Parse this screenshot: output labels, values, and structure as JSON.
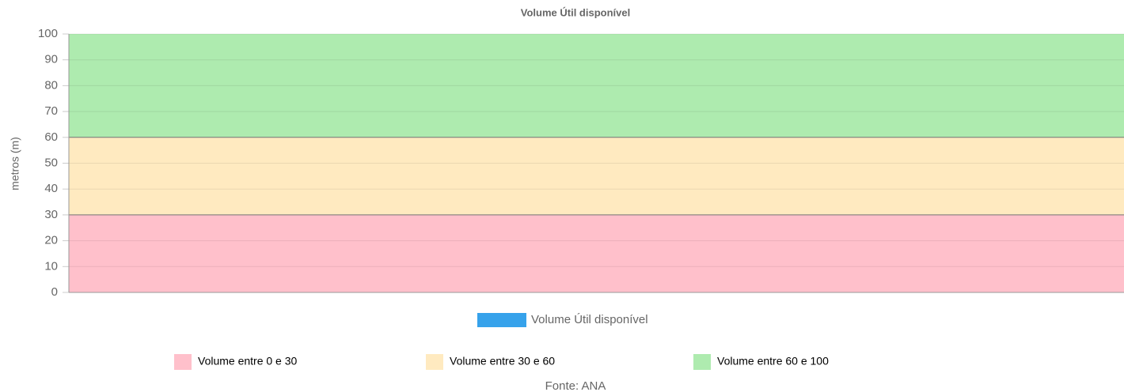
{
  "chart_data": {
    "type": "band",
    "title": "Volume Útil disponível",
    "ylabel": "metros (m)",
    "ylim": [
      0,
      100
    ],
    "yticks": [
      0,
      10,
      20,
      30,
      40,
      50,
      60,
      70,
      80,
      90,
      100
    ],
    "grid": true,
    "series": [
      {
        "name": "Volume Útil disponível",
        "color": "#36a2eb"
      }
    ],
    "bands": [
      {
        "name": "Volume entre 0 e 30",
        "color": "#ffc0cb",
        "value": 30
      },
      {
        "name": "Volume entre 30 e 60",
        "color": "#ffeac0",
        "value": 30
      },
      {
        "name": "Volume entre 60 e 100",
        "color": "#aeebaf",
        "value": 40
      }
    ],
    "source": "Fonte: ANA"
  }
}
